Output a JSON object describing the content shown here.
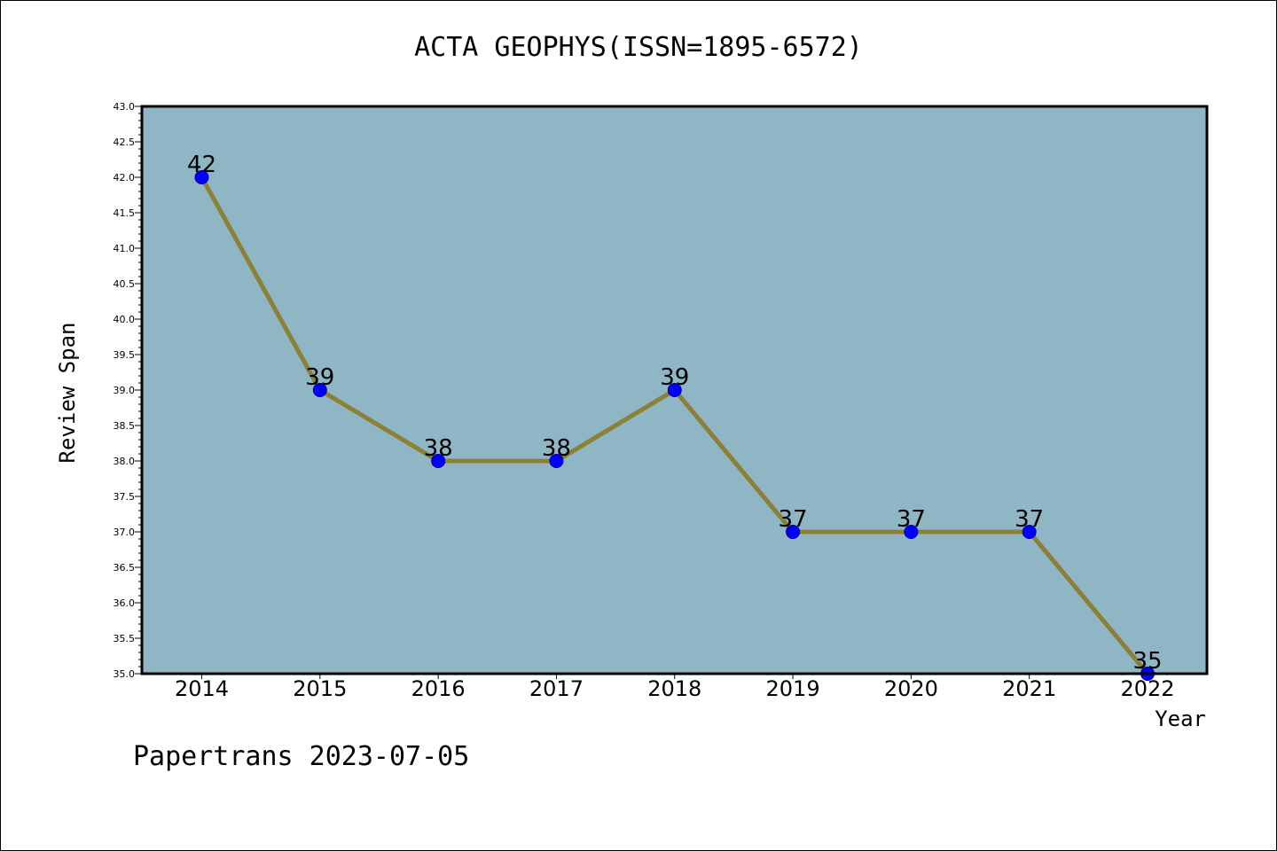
{
  "chart_data": {
    "type": "line",
    "title": "ACTA GEOPHYS(ISSN=1895-6572)",
    "xlabel": "Year",
    "ylabel": "Review Span",
    "categories": [
      "2014",
      "2015",
      "2016",
      "2017",
      "2018",
      "2019",
      "2020",
      "2021",
      "2022"
    ],
    "values": [
      42,
      39,
      38,
      38,
      39,
      37,
      37,
      37,
      35
    ],
    "data_labels": [
      "42",
      "39",
      "38",
      "38",
      "39",
      "37",
      "37",
      "37",
      "35"
    ],
    "ylim": [
      35.0,
      43.0
    ],
    "yticks": [
      "35.0",
      "35.5",
      "36.0",
      "36.5",
      "37.0",
      "37.5",
      "38.0",
      "38.5",
      "39.0",
      "39.5",
      "40.0",
      "40.5",
      "41.0",
      "41.5",
      "42.0",
      "42.5",
      "43.0"
    ],
    "grid": false,
    "colors": {
      "plot_background": "#8fb6c4",
      "line": "#8b8035",
      "marker": "#0000ff"
    }
  },
  "footer": "Papertrans 2023-07-05"
}
